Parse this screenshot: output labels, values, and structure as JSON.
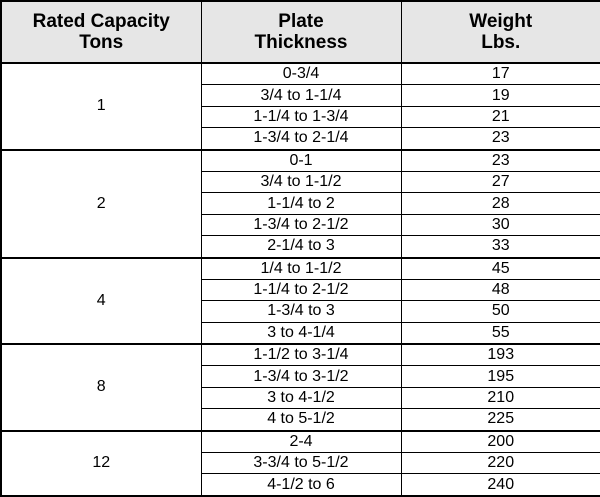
{
  "table": {
    "header": [
      [
        "Rated Capacity",
        "Tons"
      ],
      [
        "Plate",
        "Thickness"
      ],
      [
        "Weight",
        "Lbs."
      ]
    ],
    "groups": [
      {
        "capacity": 1,
        "rows": [
          [
            "0-3/4",
            17
          ],
          [
            "3/4 to 1-1/4",
            19
          ],
          [
            "1-1/4 to 1-3/4",
            21
          ],
          [
            "1-3/4 to 2-1/4",
            23
          ]
        ]
      },
      {
        "capacity": 2,
        "rows": [
          [
            "0-1",
            23
          ],
          [
            "3/4 to 1-1/2",
            27
          ],
          [
            "1-1/4 to 2",
            28
          ],
          [
            "1-3/4 to 2-1/2",
            30
          ],
          [
            "2-1/4 to 3",
            33
          ]
        ]
      },
      {
        "capacity": 4,
        "rows": [
          [
            "1/4 to 1-1/2",
            45
          ],
          [
            "1-1/4 to 2-1/2",
            48
          ],
          [
            "1-3/4 to 3",
            50
          ],
          [
            "3 to 4-1/4",
            55
          ]
        ]
      },
      {
        "capacity": 8,
        "rows": [
          [
            "1-1/2 to 3-1/4",
            193
          ],
          [
            "1-3/4 to 3-1/2",
            195
          ],
          [
            "3 to 4-1/2",
            210
          ],
          [
            "4 to 5-1/2",
            225
          ]
        ]
      },
      {
        "capacity": 12,
        "rows": [
          [
            "2-4",
            200
          ],
          [
            "3-3/4 to 5-1/2",
            220
          ],
          [
            "4-1/2 to 6",
            240
          ]
        ]
      }
    ]
  }
}
